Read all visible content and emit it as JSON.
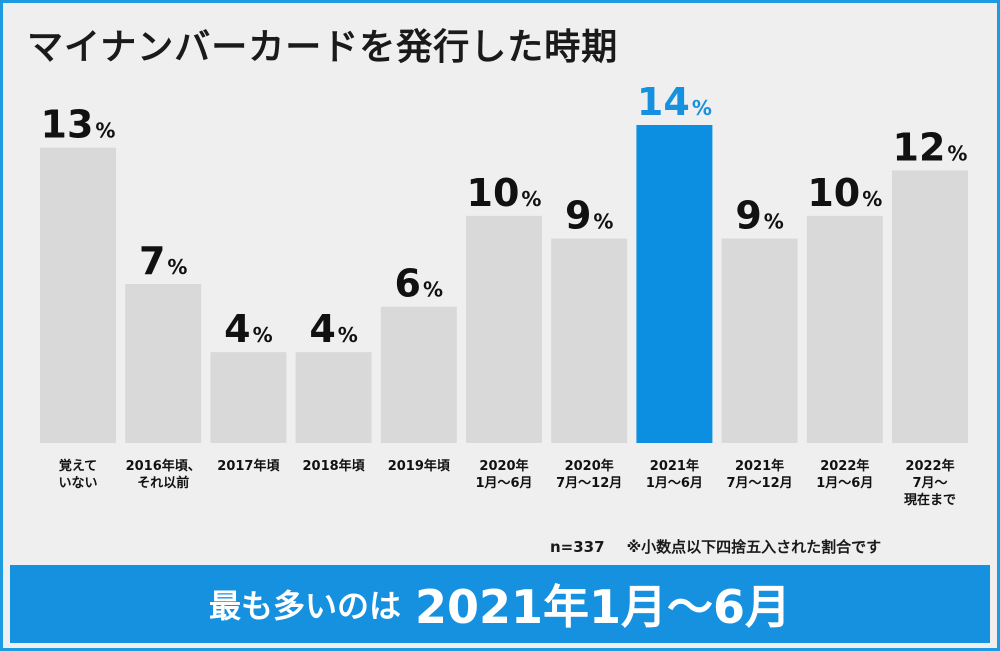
{
  "title": "マイナンバーカードを発行した時期",
  "chart_data": {
    "type": "bar",
    "title": "マイナンバーカードを発行した時期",
    "unit": "%",
    "categories": [
      [
        "覚えて",
        "いない"
      ],
      [
        "2016年頃、",
        "それ以前"
      ],
      [
        "2017年頃"
      ],
      [
        "2018年頃"
      ],
      [
        "2019年頃"
      ],
      [
        "2020年",
        "1月〜6月"
      ],
      [
        "2020年",
        "7月〜12月"
      ],
      [
        "2021年",
        "1月〜6月"
      ],
      [
        "2021年",
        "7月〜12月"
      ],
      [
        "2022年",
        "1月〜6月"
      ],
      [
        "2022年",
        "7月〜",
        "現在まで"
      ]
    ],
    "values": [
      13,
      7,
      4,
      4,
      6,
      10,
      9,
      14,
      9,
      10,
      12
    ],
    "highlight_index": 7,
    "ylim": [
      0,
      14
    ],
    "colors": {
      "bar": "#d9d9d9",
      "highlight": "#0c8fe0"
    }
  },
  "note": {
    "sample": "n=337",
    "rounding": "※小数点以下四捨五入された割合です"
  },
  "banner": {
    "lead": "最も多いのは",
    "value": "2021年1月〜6月"
  }
}
